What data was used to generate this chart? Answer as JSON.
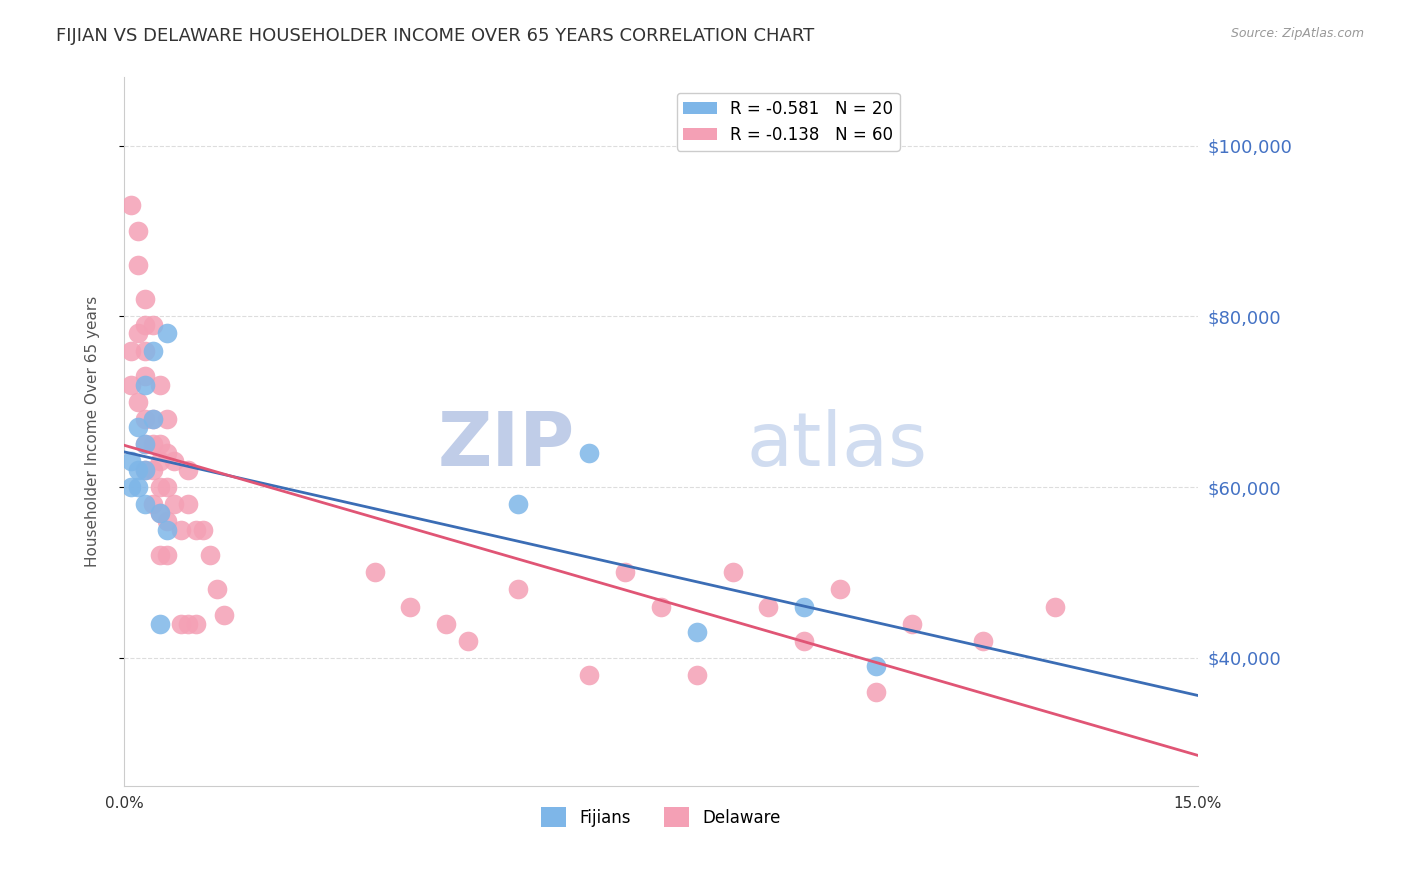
{
  "title": "FIJIAN VS DELAWARE HOUSEHOLDER INCOME OVER 65 YEARS CORRELATION CHART",
  "source": "Source: ZipAtlas.com",
  "ylabel": "Householder Income Over 65 years",
  "xlim": [
    0.0,
    0.15
  ],
  "ylim": [
    25000,
    108000
  ],
  "yticks": [
    40000,
    60000,
    80000,
    100000
  ],
  "ytick_labels": [
    "$40,000",
    "$60,000",
    "$80,000",
    "$100,000"
  ],
  "xticks": [
    0.0,
    0.03,
    0.06,
    0.09,
    0.12,
    0.15
  ],
  "xtick_labels": [
    "0.0%",
    "",
    "",
    "",
    "",
    "15.0%"
  ],
  "fijian_color": "#7EB6E8",
  "delaware_color": "#F4A0B5",
  "trend_fijian_color": "#3B6DB5",
  "trend_delaware_color": "#E05575",
  "fijian_R": -0.581,
  "fijian_N": 20,
  "delaware_R": -0.138,
  "delaware_N": 60,
  "fijian_scatter_x": [
    0.001,
    0.001,
    0.002,
    0.002,
    0.002,
    0.003,
    0.003,
    0.003,
    0.003,
    0.004,
    0.004,
    0.005,
    0.005,
    0.006,
    0.006,
    0.055,
    0.065,
    0.08,
    0.095,
    0.105
  ],
  "fijian_scatter_y": [
    63000,
    60000,
    67000,
    62000,
    60000,
    72000,
    65000,
    62000,
    58000,
    76000,
    68000,
    57000,
    44000,
    78000,
    55000,
    58000,
    64000,
    43000,
    46000,
    39000
  ],
  "delaware_scatter_x": [
    0.001,
    0.001,
    0.001,
    0.002,
    0.002,
    0.002,
    0.002,
    0.003,
    0.003,
    0.003,
    0.003,
    0.003,
    0.003,
    0.003,
    0.004,
    0.004,
    0.004,
    0.004,
    0.004,
    0.005,
    0.005,
    0.005,
    0.005,
    0.005,
    0.005,
    0.006,
    0.006,
    0.006,
    0.006,
    0.006,
    0.007,
    0.007,
    0.008,
    0.008,
    0.009,
    0.009,
    0.009,
    0.01,
    0.01,
    0.011,
    0.012,
    0.013,
    0.014,
    0.035,
    0.04,
    0.045,
    0.048,
    0.055,
    0.065,
    0.07,
    0.075,
    0.08,
    0.085,
    0.09,
    0.095,
    0.1,
    0.105,
    0.11,
    0.12,
    0.13
  ],
  "delaware_scatter_y": [
    93000,
    76000,
    72000,
    90000,
    86000,
    78000,
    70000,
    82000,
    79000,
    76000,
    73000,
    68000,
    65000,
    62000,
    79000,
    68000,
    65000,
    62000,
    58000,
    72000,
    65000,
    63000,
    60000,
    57000,
    52000,
    68000,
    64000,
    60000,
    56000,
    52000,
    63000,
    58000,
    55000,
    44000,
    62000,
    58000,
    44000,
    55000,
    44000,
    55000,
    52000,
    48000,
    45000,
    50000,
    46000,
    44000,
    42000,
    48000,
    38000,
    50000,
    46000,
    38000,
    50000,
    46000,
    42000,
    48000,
    36000,
    44000,
    42000,
    46000
  ],
  "watermark_zip": "ZIP",
  "watermark_atlas": "atlas",
  "watermark_color": "#C8D8F0",
  "background_color": "#FFFFFF",
  "grid_color": "#DDDDDD",
  "title_color": "#333333",
  "axis_label_color": "#555555",
  "right_yaxis_color": "#4472C4",
  "legend_fijian_label": "R = -0.581   N = 20",
  "legend_delaware_label": "R = -0.138   N = 60",
  "bottom_legend_fijians": "Fijians",
  "bottom_legend_delaware": "Delaware"
}
